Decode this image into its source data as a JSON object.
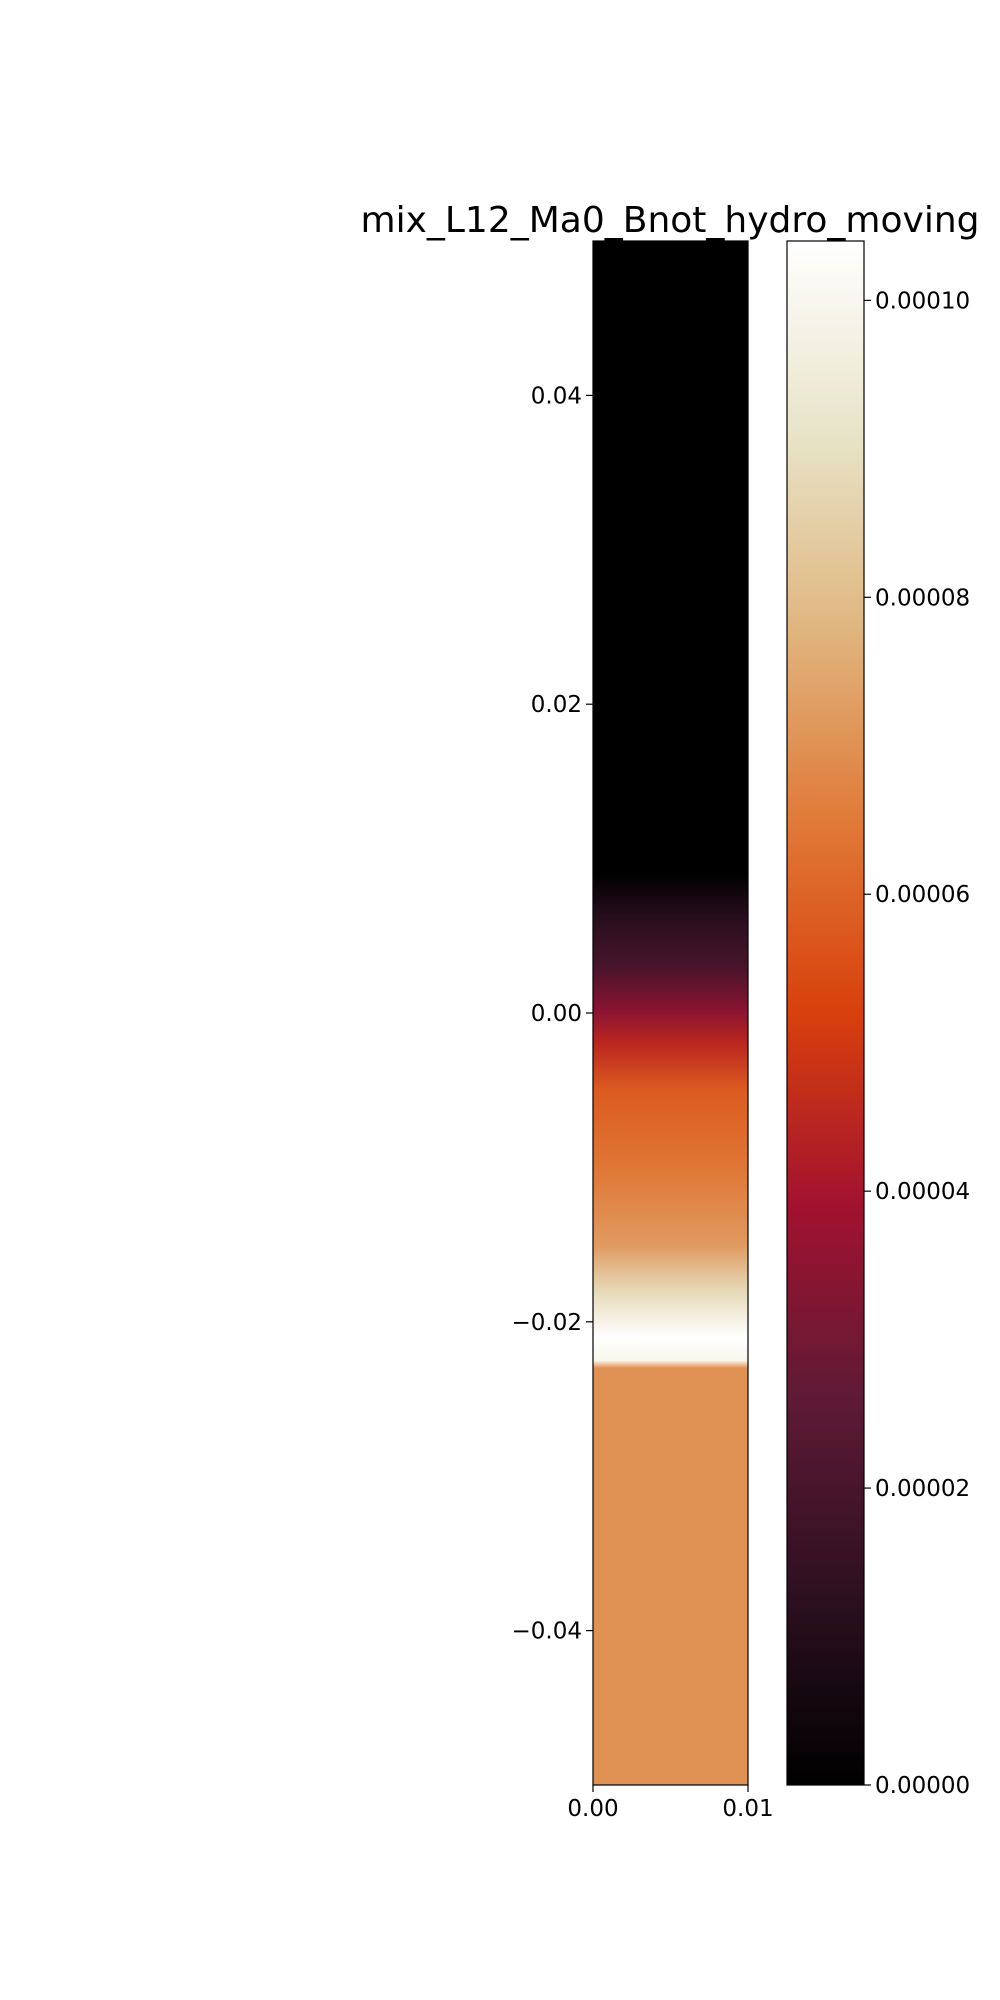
{
  "chart_data": {
    "type": "heatmap",
    "title": "mix_L12_Ma0_Bnot_hydro_moving",
    "xlabel": "",
    "ylabel": "",
    "xlim": [
      0.0,
      0.01
    ],
    "ylim": [
      -0.05,
      0.05
    ],
    "x_ticks": [
      {
        "value": 0.0,
        "label": "0.00"
      },
      {
        "value": 0.01,
        "label": "0.01"
      }
    ],
    "y_ticks": [
      {
        "value": 0.04,
        "label": "0.04"
      },
      {
        "value": 0.02,
        "label": "0.02"
      },
      {
        "value": 0.0,
        "label": "0.00"
      },
      {
        "value": -0.02,
        "label": "−0.02"
      },
      {
        "value": -0.04,
        "label": "−0.04"
      }
    ],
    "colorbar": {
      "range": [
        0.0,
        0.000104
      ],
      "ticks": [
        {
          "value": 0.0,
          "label": "0.00000"
        },
        {
          "value": 2e-05,
          "label": "0.00002"
        },
        {
          "value": 4e-05,
          "label": "0.00004"
        },
        {
          "value": 6e-05,
          "label": "0.00006"
        },
        {
          "value": 8e-05,
          "label": "0.00008"
        },
        {
          "value": 0.0001,
          "label": "0.00010"
        }
      ],
      "colormap_stops": [
        "#000000",
        "#2e1020",
        "#5e1a35",
        "#a2122f",
        "#d8400c",
        "#e07a38",
        "#e0b680",
        "#e8e4c8",
        "#ffffff"
      ]
    },
    "vertical_profile": [
      {
        "y": 0.05,
        "value": 0.0
      },
      {
        "y": 0.009,
        "value": 0.0
      },
      {
        "y": 0.006,
        "value": 1.2e-05
      },
      {
        "y": 0.003,
        "value": 2e-05
      },
      {
        "y": 0.0,
        "value": 3.5e-05
      },
      {
        "y": -0.002,
        "value": 4.5e-05
      },
      {
        "y": -0.005,
        "value": 5.8e-05
      },
      {
        "y": -0.01,
        "value": 6.4e-05
      },
      {
        "y": -0.015,
        "value": 7.2e-05
      },
      {
        "y": -0.018,
        "value": 8.8e-05
      },
      {
        "y": -0.021,
        "value": 0.000104
      },
      {
        "y": -0.0225,
        "value": 0.0001
      },
      {
        "y": -0.023,
        "value": 7e-05
      },
      {
        "y": -0.05,
        "value": 7e-05
      }
    ]
  }
}
